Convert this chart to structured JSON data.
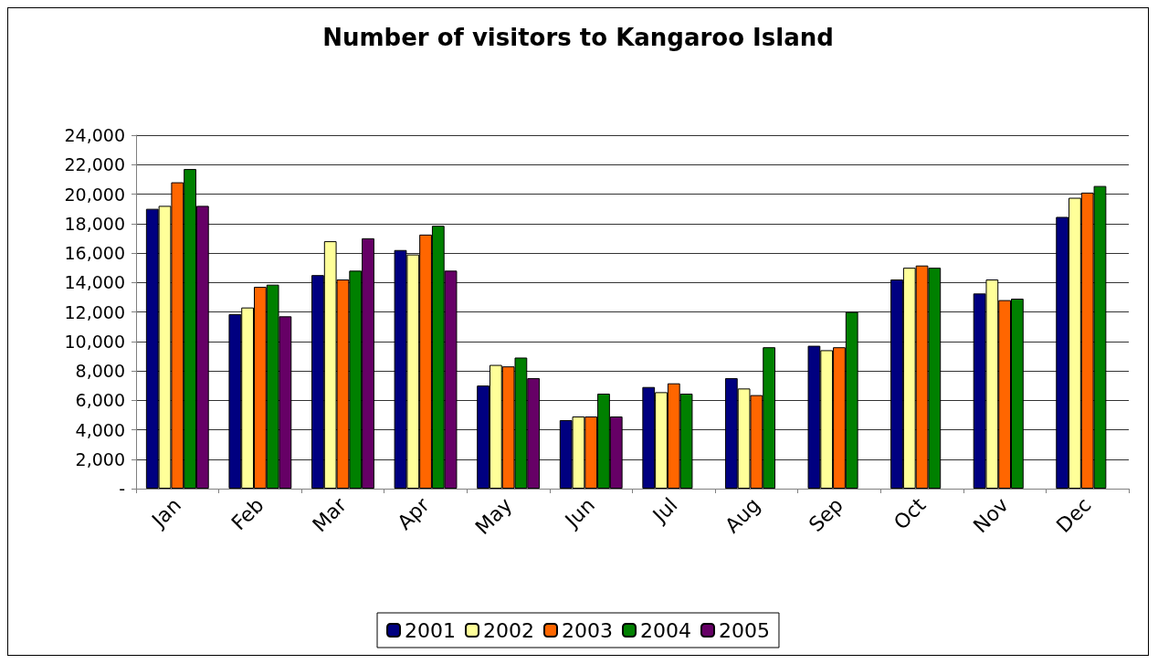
{
  "chart_data": {
    "type": "bar",
    "title": "Number of visitors to Kangaroo Island",
    "categories": [
      "Jan",
      "Feb",
      "Mar",
      "Apr",
      "May",
      "Jun",
      "Jul",
      "Aug",
      "Sep",
      "Oct",
      "Nov",
      "Dec"
    ],
    "series": [
      {
        "name": "2001",
        "color": "#000080",
        "values": [
          19000,
          11850,
          14500,
          16200,
          7000,
          4650,
          6900,
          7500,
          9700,
          14200,
          13250,
          18450
        ]
      },
      {
        "name": "2002",
        "color": "#ffff99",
        "values": [
          19200,
          12300,
          16800,
          15900,
          8400,
          4900,
          6550,
          6800,
          9400,
          15000,
          14200,
          19750
        ]
      },
      {
        "name": "2003",
        "color": "#ff6600",
        "values": [
          20800,
          13700,
          14200,
          17250,
          8300,
          4900,
          7150,
          6350,
          9600,
          15150,
          12800,
          20100
        ]
      },
      {
        "name": "2004",
        "color": "#008000",
        "values": [
          21700,
          13850,
          14800,
          17850,
          8900,
          6450,
          6450,
          9600,
          12000,
          15000,
          12900,
          20550
        ]
      },
      {
        "name": "2005",
        "color": "#660066",
        "values": [
          19200,
          11700,
          17000,
          14800,
          7500,
          4900,
          null,
          null,
          null,
          null,
          null,
          null
        ]
      }
    ],
    "ylim": [
      0,
      24000
    ],
    "yticks": [
      {
        "value": 0,
        "label": "-"
      },
      {
        "value": 2000,
        "label": "2,000"
      },
      {
        "value": 4000,
        "label": "4,000"
      },
      {
        "value": 6000,
        "label": "6,000"
      },
      {
        "value": 8000,
        "label": "8,000"
      },
      {
        "value": 10000,
        "label": "10,000"
      },
      {
        "value": 12000,
        "label": "12,000"
      },
      {
        "value": 14000,
        "label": "14,000"
      },
      {
        "value": 16000,
        "label": "16,000"
      },
      {
        "value": 18000,
        "label": "18,000"
      },
      {
        "value": 20000,
        "label": "20,000"
      },
      {
        "value": 22000,
        "label": "22,000"
      },
      {
        "value": 24000,
        "label": "24,000"
      }
    ],
    "grid": "y",
    "legend": "bottom"
  }
}
